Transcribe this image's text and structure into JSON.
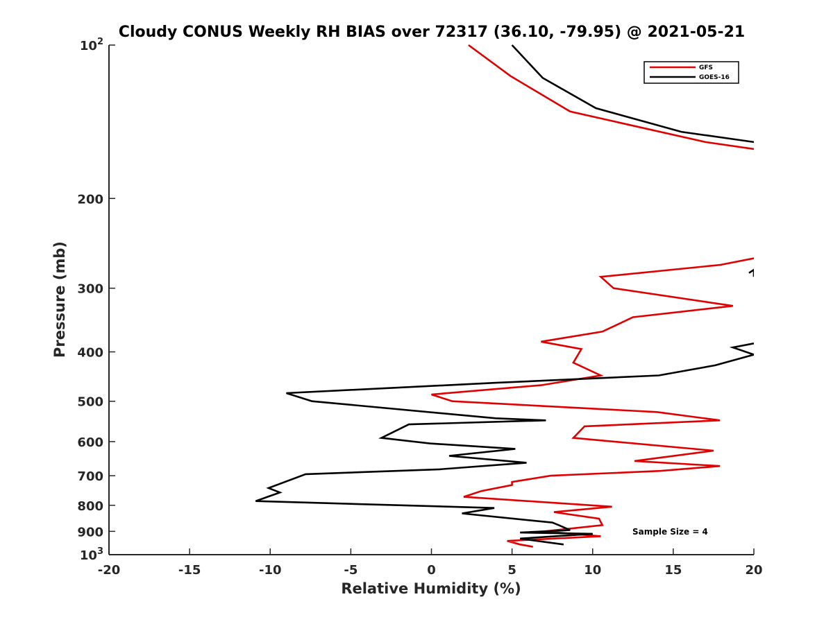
{
  "chart_data": {
    "type": "line",
    "title": "Cloudy CONUS Weekly RH BIAS over 72317 (36.10, -79.95) @ 2021-05-21",
    "xlabel": "Relative Humidity (%)",
    "ylabel": "Pressure (mb)",
    "xlim": [
      -20,
      20
    ],
    "ylim": [
      1000,
      100
    ],
    "yscale": "log",
    "y_reversed": true,
    "x_ticks": [
      -20,
      -15,
      -10,
      -5,
      0,
      5,
      10,
      15,
      20
    ],
    "y_ticks": [
      {
        "value": 100,
        "label": "10",
        "sup": "2"
      },
      {
        "value": 200,
        "label": "200",
        "sup": ""
      },
      {
        "value": 300,
        "label": "300",
        "sup": ""
      },
      {
        "value": 400,
        "label": "400",
        "sup": ""
      },
      {
        "value": 500,
        "label": "500",
        "sup": ""
      },
      {
        "value": 600,
        "label": "600",
        "sup": ""
      },
      {
        "value": 700,
        "label": "700",
        "sup": ""
      },
      {
        "value": 800,
        "label": "800",
        "sup": ""
      },
      {
        "value": 900,
        "label": "900",
        "sup": ""
      },
      {
        "value": 1000,
        "label": "10",
        "sup": "3"
      }
    ],
    "grid": false,
    "legend_position": "top-right",
    "annotation": "Sample Size = 4",
    "series": [
      {
        "name": "GFS",
        "color": "#e00000",
        "segments": [
          [
            [
              2.3,
              100
            ],
            [
              4.9,
              115
            ],
            [
              8.6,
              135
            ],
            [
              17,
              155
            ],
            [
              20,
              160
            ]
          ],
          [
            [
              20,
              262
            ],
            [
              17.9,
              270
            ],
            [
              10.5,
              285
            ],
            [
              11.3,
              300
            ],
            [
              18.7,
              325
            ],
            [
              12.5,
              342
            ],
            [
              10.6,
              365
            ],
            [
              6.8,
              382
            ],
            [
              9.3,
              395
            ],
            [
              8.8,
              420
            ],
            [
              10.5,
              445
            ],
            [
              6.8,
              465
            ],
            [
              0,
              485
            ],
            [
              1.3,
              500
            ],
            [
              14,
              525
            ],
            [
              17.9,
              545
            ],
            [
              9.5,
              560
            ],
            [
              8.8,
              590
            ],
            [
              17.5,
              625
            ],
            [
              12.6,
              655
            ],
            [
              17.9,
              670
            ],
            [
              14.2,
              685
            ],
            [
              7.4,
              700
            ],
            [
              5,
              720
            ],
            [
              5,
              730
            ],
            [
              3.1,
              750
            ],
            [
              2,
              770
            ],
            [
              11.2,
              805
            ],
            [
              7.6,
              825
            ],
            [
              10.4,
              850
            ],
            [
              10.6,
              875
            ],
            [
              7,
              900
            ],
            [
              10.5,
              920
            ],
            [
              4.7,
              940
            ],
            [
              5.5,
              955
            ],
            [
              6.3,
              965
            ]
          ]
        ]
      },
      {
        "name": "GOES-16",
        "color": "#000000",
        "segments": [
          [
            [
              5,
              100
            ],
            [
              6.9,
              116
            ],
            [
              10.2,
              133
            ],
            [
              15.5,
              148
            ],
            [
              20,
              155
            ]
          ],
          [
            [
              19.7,
              280
            ],
            [
              20,
              276
            ],
            [
              20,
              280
            ],
            [
              20,
              285
            ]
          ],
          [
            [
              20,
              385
            ],
            [
              18.7,
              392
            ],
            [
              20,
              405
            ],
            [
              17.6,
              425
            ],
            [
              14.1,
              445
            ],
            [
              4,
              460
            ],
            [
              -9,
              482
            ],
            [
              -7.4,
              500
            ],
            [
              4,
              540
            ],
            [
              7.1,
              545
            ],
            [
              -1.4,
              555
            ],
            [
              -3.1,
              590
            ],
            [
              -0.1,
              605
            ],
            [
              5.2,
              620
            ],
            [
              1.1,
              640
            ],
            [
              5.9,
              660
            ],
            [
              0.5,
              680
            ],
            [
              -7.8,
              695
            ],
            [
              -10.1,
              740
            ],
            [
              -9.4,
              755
            ],
            [
              -10.9,
              785
            ],
            [
              3.9,
              810
            ],
            [
              1.9,
              830
            ],
            [
              7.5,
              865
            ],
            [
              7.9,
              875
            ],
            [
              8.6,
              895
            ],
            [
              5.5,
              905
            ],
            [
              10,
              910
            ],
            [
              5.5,
              930
            ],
            [
              8.2,
              955
            ]
          ]
        ]
      }
    ]
  }
}
